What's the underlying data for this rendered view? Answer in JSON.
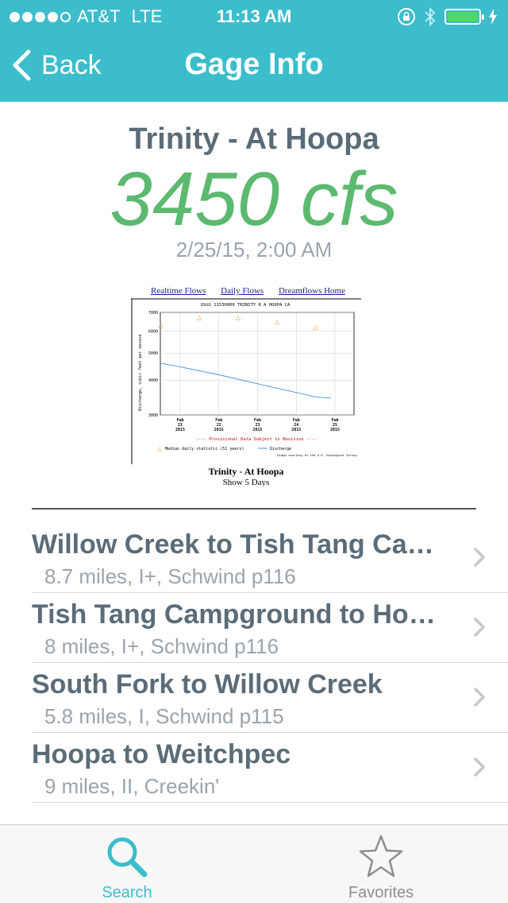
{
  "status_bar": {
    "carrier": "AT&T",
    "network": "LTE",
    "time": "11:13 AM"
  },
  "nav": {
    "back_label": "Back",
    "title": "Gage Info"
  },
  "gage": {
    "river_name": "Trinity - At Hoopa",
    "flow": "3450 cfs",
    "timestamp": "2/25/15, 2:00 AM"
  },
  "graph": {
    "links": [
      "Realtime Flows",
      "Daily Flows",
      "Dreamflows Home"
    ],
    "chart_title": "USGS 11530000 TRINITY R A HOOPA CA",
    "ylabel": "Discharge, cubic feet per second",
    "ytick_labels": [
      "7000",
      "6000",
      "5000",
      "4000",
      "3000"
    ],
    "xtick_labels": [
      [
        "Feb",
        "21",
        "2015"
      ],
      [
        "Feb",
        "22",
        "2015"
      ],
      [
        "Feb",
        "23",
        "2015"
      ],
      [
        "Feb",
        "24",
        "2015"
      ],
      [
        "Feb",
        "25",
        "2015"
      ]
    ],
    "provisional": "---- Provisional Data Subject to Revision ----",
    "legend_median": "Median daily statistic (51 years)",
    "legend_discharge": "Discharge",
    "credit": "Graph courtesy of the U.S. Geological Survey",
    "caption": "Trinity - At Hoopa",
    "sub_caption": "Show 5 Days"
  },
  "chart_data": {
    "type": "line",
    "title": "USGS 11530000 TRINITY R A HOOPA CA",
    "ylabel": "Discharge, cubic feet per second",
    "ylim": [
      3000,
      7000
    ],
    "y_scale": "log",
    "grid": true,
    "categories": [
      "Feb 21 2015",
      "Feb 22 2015",
      "Feb 23 2015",
      "Feb 24 2015",
      "Feb 25 2015"
    ],
    "series": [
      {
        "name": "Discharge",
        "style": "line",
        "color": "#4a90d9",
        "x": [
          -0.5,
          0,
          0.5,
          1,
          1.5,
          2,
          2.5,
          3,
          3.5,
          3.9
        ],
        "values": [
          4600,
          4460,
          4320,
          4180,
          4030,
          3880,
          3740,
          3610,
          3480,
          3450
        ]
      },
      {
        "name": "Median daily statistic (51 years)",
        "style": "triangle",
        "color": "#e39a2b",
        "x": [
          -0.5,
          0.5,
          1.5,
          2.5,
          3.5
        ],
        "values": [
          6300,
          6700,
          6700,
          6500,
          6200
        ]
      }
    ]
  },
  "runs": [
    {
      "title": "Willow Creek to Tish Tang Ca…",
      "subtitle": "8.7 miles, I+, Schwind p116"
    },
    {
      "title": "Tish Tang Campground to Ho…",
      "subtitle": "8 miles, I+, Schwind p116"
    },
    {
      "title": "South Fork to Willow Creek",
      "subtitle": "5.8 miles, I, Schwind p115"
    },
    {
      "title": "Hoopa to Weitchpec",
      "subtitle": "9 miles, II, Creekin'"
    }
  ],
  "tabs": {
    "search_label": "Search",
    "favorites_label": "Favorites"
  },
  "colors": {
    "accent": "#3bbdcb",
    "flow_green": "#5cb970",
    "title_slate": "#5a6c78",
    "battery_green": "#4cd964"
  }
}
